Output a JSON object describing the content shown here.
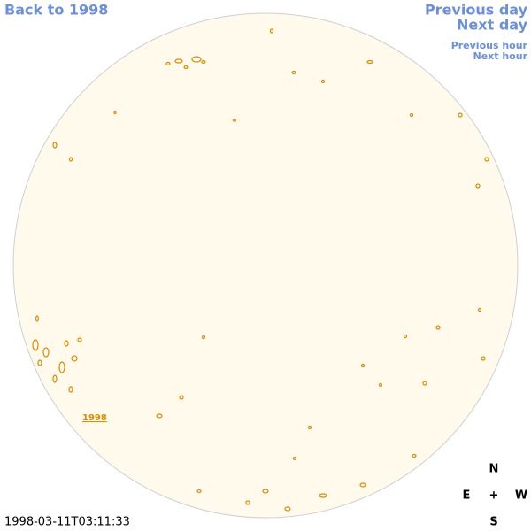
{
  "nav": {
    "back": "Back to 1998",
    "previous_day": "Previous day",
    "next_day": "Next day",
    "previous_hour": "Previous hour",
    "next_hour": "Next hour"
  },
  "disk_label": "1998",
  "timestamp": "1998-03-11T03:11:33",
  "compass": {
    "north": "N",
    "east": "E",
    "center": "+",
    "west": "W",
    "south": "S"
  }
}
